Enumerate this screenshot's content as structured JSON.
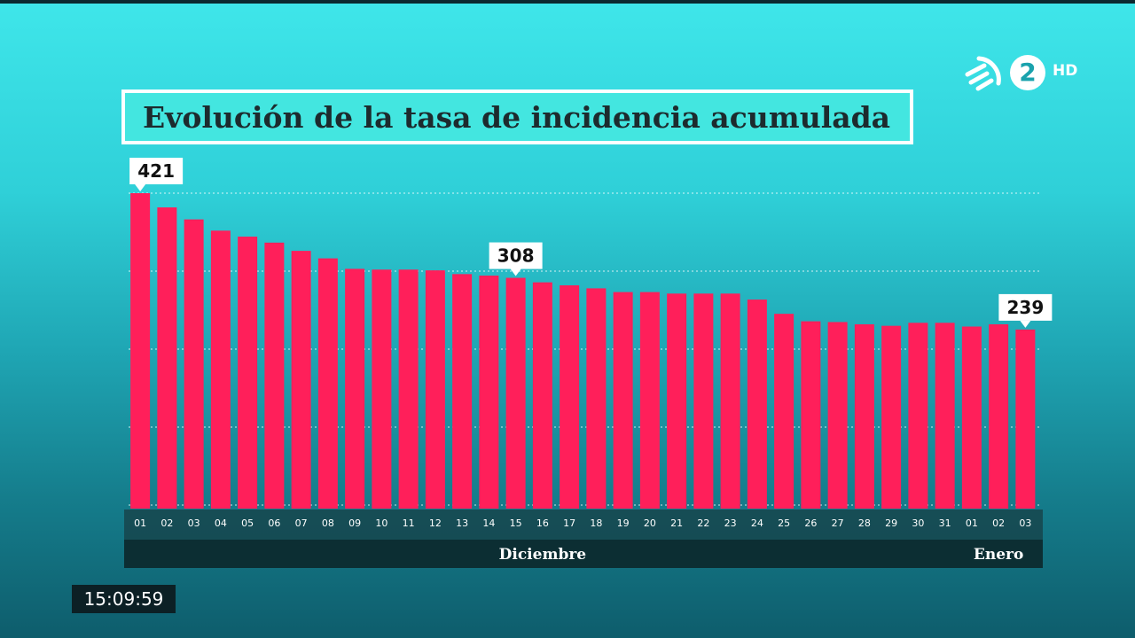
{
  "header": {
    "title": "Evolución de la tasa de incidencia acumulada",
    "channel_number": "2",
    "channel_hd": "HD"
  },
  "clock": "15:09:59",
  "colors": {
    "bar": "#ff1f5a",
    "title_bg": "#43e6e0",
    "axis_band": "#16454c",
    "month_band": "#0c2e33"
  },
  "chart_data": {
    "type": "bar",
    "title": "Evolución de la tasa de incidencia acumulada",
    "categories": [
      "01",
      "02",
      "03",
      "04",
      "05",
      "06",
      "07",
      "08",
      "09",
      "10",
      "11",
      "12",
      "13",
      "14",
      "15",
      "16",
      "17",
      "18",
      "19",
      "20",
      "21",
      "22",
      "23",
      "24",
      "25",
      "26",
      "27",
      "28",
      "29",
      "30",
      "31",
      "01",
      "02",
      "03"
    ],
    "values": [
      421,
      402,
      386,
      371,
      363,
      355,
      344,
      334,
      320,
      319,
      319,
      318,
      313,
      311,
      308,
      302,
      298,
      294,
      289,
      289,
      287,
      287,
      287,
      279,
      260,
      250,
      249,
      246,
      244,
      248,
      248,
      243,
      246,
      239
    ],
    "months": [
      {
        "label": "Diciembre",
        "first_index": 0,
        "last_index": 30
      },
      {
        "label": "Enero",
        "first_index": 31,
        "last_index": 33
      }
    ],
    "annotations": [
      {
        "index": 0,
        "label": "421"
      },
      {
        "index": 14,
        "label": "308"
      },
      {
        "index": 33,
        "label": "239"
      }
    ],
    "ylim": [
      0,
      421
    ],
    "grid": true,
    "xlabel": "",
    "ylabel": ""
  }
}
